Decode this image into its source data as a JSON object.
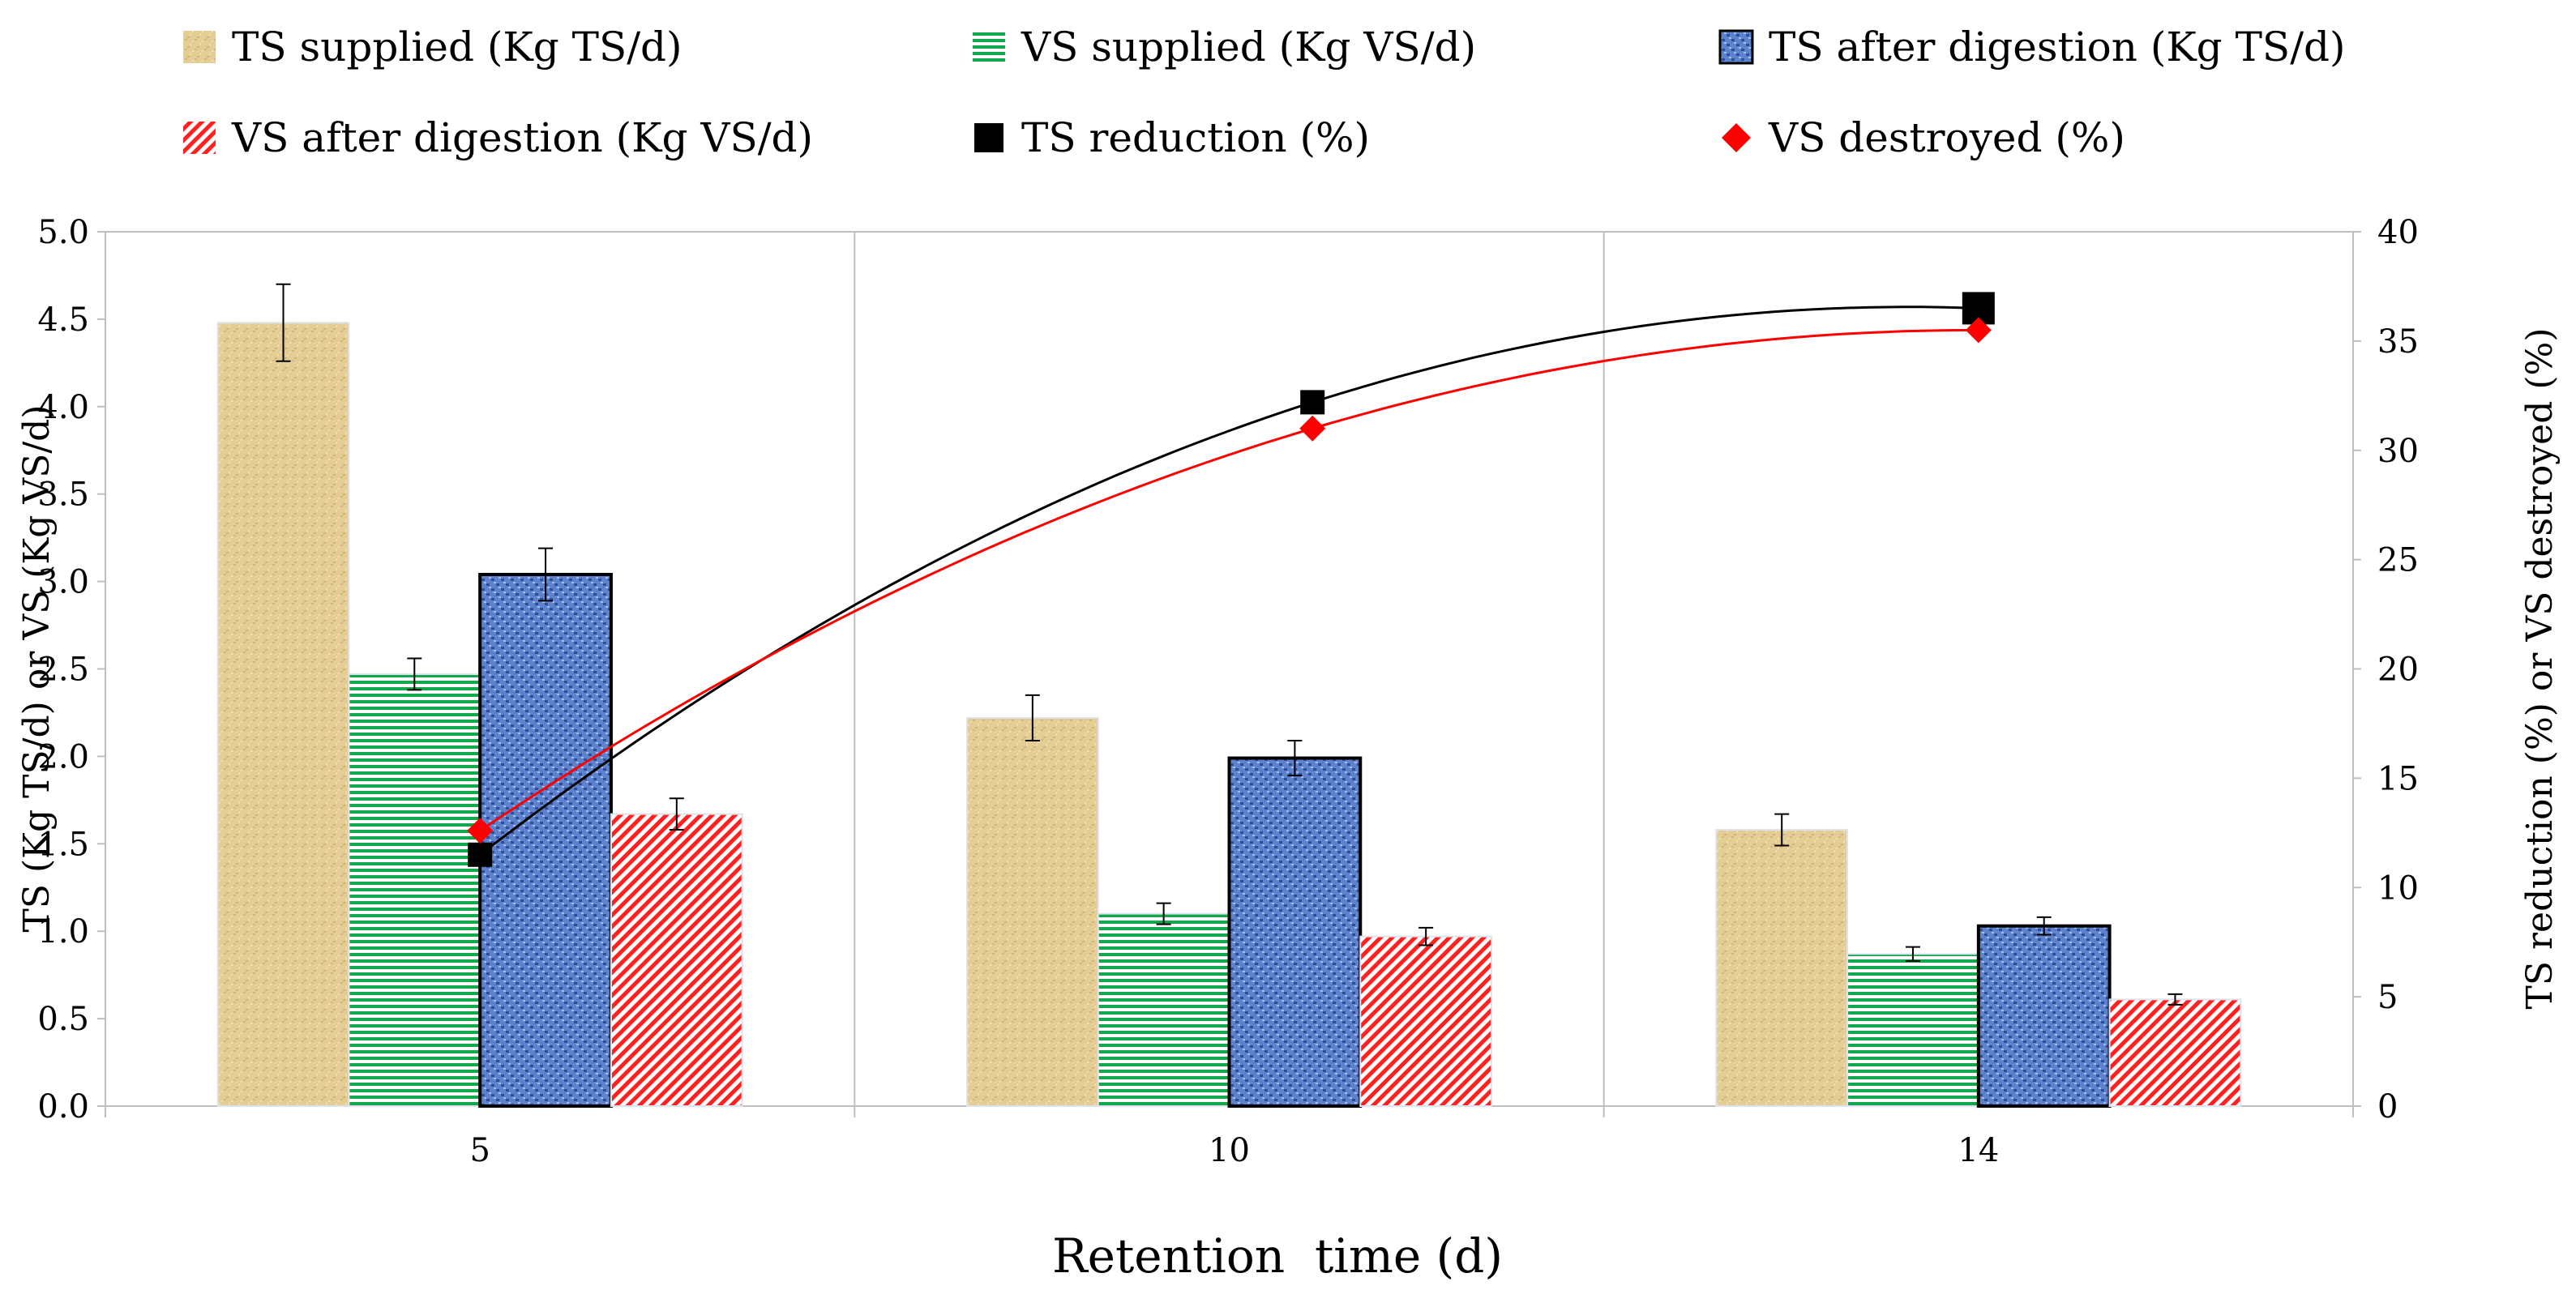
{
  "chart_data": {
    "type": "bar",
    "title": "",
    "xlabel": "Retention  time (d)",
    "ylabel": "TS (Kg TS/d) or VS (Kg VS/d)",
    "y2label": "TS reduction (%) or VS destroyed (%)",
    "categories": [
      "5",
      "10",
      "14"
    ],
    "ylim": [
      0,
      5
    ],
    "y2lim": [
      0,
      40
    ],
    "y_ticks": [
      "0.0",
      "0.5",
      "1.0",
      "1.5",
      "2.0",
      "2.5",
      "3.0",
      "3.5",
      "4.0",
      "4.5",
      "5.0"
    ],
    "y2_ticks": [
      "0",
      "5",
      "10",
      "15",
      "20",
      "25",
      "30",
      "35",
      "40"
    ],
    "grid": true,
    "legend_position": "top",
    "series": [
      {
        "name": "TS supplied (Kg TS/d)",
        "kind": "bar",
        "axis": "left",
        "values": [
          4.48,
          2.22,
          1.58
        ],
        "errors": [
          0.22,
          0.13,
          0.09
        ],
        "color": "#e0c98e"
      },
      {
        "name": "VS supplied (Kg VS/d)",
        "kind": "bar",
        "axis": "left",
        "values": [
          2.47,
          1.1,
          0.87
        ],
        "errors": [
          0.09,
          0.06,
          0.04
        ],
        "color": "#1aaa50"
      },
      {
        "name": "TS after digestion (Kg TS/d)",
        "kind": "bar",
        "axis": "left",
        "values": [
          3.04,
          1.99,
          1.03
        ],
        "errors": [
          0.15,
          0.1,
          0.05
        ],
        "color": "#5a7dc8"
      },
      {
        "name": "VS after digestion (Kg VS/d)",
        "kind": "bar",
        "axis": "left",
        "values": [
          1.67,
          0.97,
          0.61
        ],
        "errors": [
          0.09,
          0.05,
          0.03
        ],
        "color": "#ff2a2a"
      },
      {
        "name": "TS reduction (%)",
        "kind": "scatter",
        "axis": "right",
        "marker": "square",
        "values": [
          11.5,
          32.2,
          36.5
        ],
        "color": "#000000"
      },
      {
        "name": "VS destroyed (%)",
        "kind": "scatter",
        "axis": "right",
        "marker": "diamond",
        "values": [
          12.6,
          31.0,
          35.5
        ],
        "color": "#ff0000"
      }
    ]
  }
}
